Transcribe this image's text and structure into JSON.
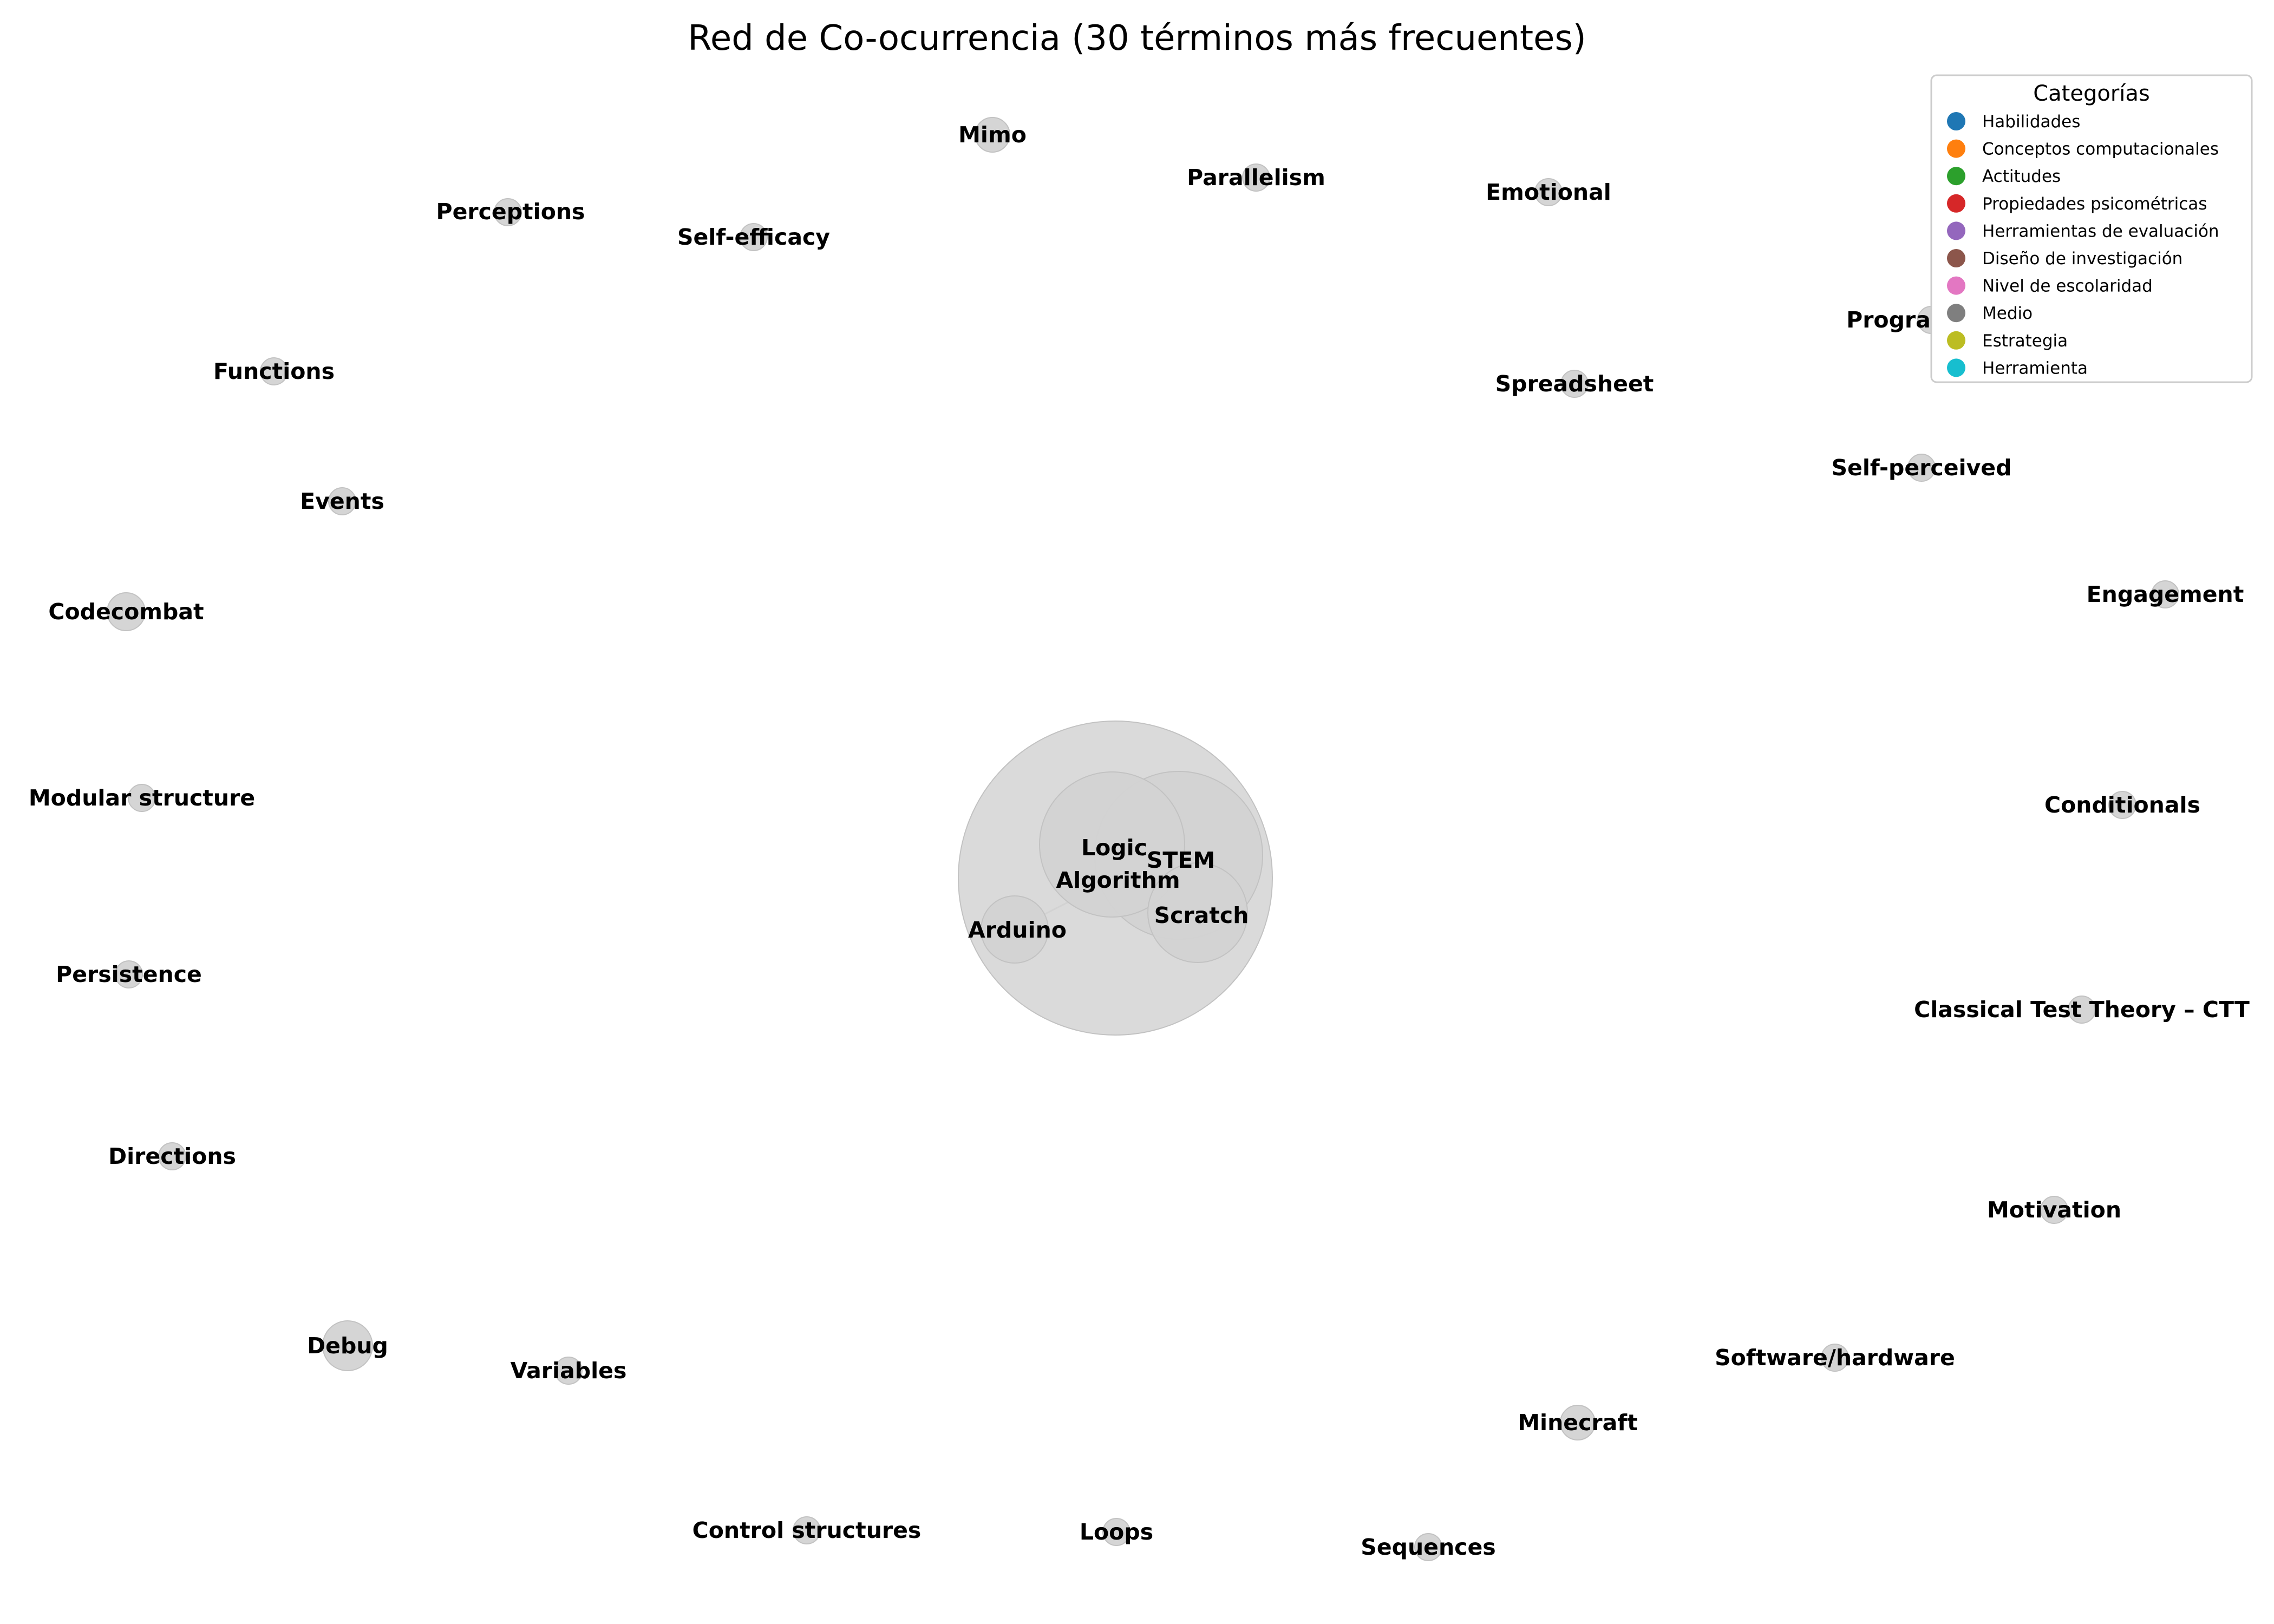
{
  "title": "Red de Co-ocurrencia (30 términos más frecuentes)",
  "legend": {
    "title": "Categorías",
    "placement": "top-right",
    "items": [
      {
        "label": "Habilidades",
        "color": "#1f77b4"
      },
      {
        "label": "Conceptos computacionales",
        "color": "#ff7f0e"
      },
      {
        "label": "Actitudes",
        "color": "#2ca02c"
      },
      {
        "label": "Propiedades psicométricas",
        "color": "#d62728"
      },
      {
        "label": "Herramientas de evaluación",
        "color": "#9467bd"
      },
      {
        "label": "Diseño de investigación",
        "color": "#8c564b"
      },
      {
        "label": "Nivel de escolaridad",
        "color": "#e377c2"
      },
      {
        "label": "Medio",
        "color": "#7f7f7f"
      },
      {
        "label": "Estrategia",
        "color": "#bcbd22"
      },
      {
        "label": "Herramienta",
        "color": "#17becf"
      }
    ]
  },
  "node_color": "#d3d3d3",
  "nodes": [
    {
      "label": "Algorithm"
    },
    {
      "label": "Logic"
    },
    {
      "label": "STEM"
    },
    {
      "label": "Scratch"
    },
    {
      "label": "Arduino"
    },
    {
      "label": "Mimo"
    },
    {
      "label": "Parallelism"
    },
    {
      "label": "Emotional"
    },
    {
      "label": "Perceptions"
    },
    {
      "label": "Self-efficacy"
    },
    {
      "label": "Programming"
    },
    {
      "label": "Functions"
    },
    {
      "label": "Spreadsheet"
    },
    {
      "label": "Self-perceived"
    },
    {
      "label": "Events"
    },
    {
      "label": "Engagement"
    },
    {
      "label": "Codecombat"
    },
    {
      "label": "Modular structure"
    },
    {
      "label": "Conditionals"
    },
    {
      "label": "Persistence"
    },
    {
      "label": "Classical Test Theory – CTT"
    },
    {
      "label": "Directions"
    },
    {
      "label": "Motivation"
    },
    {
      "label": "Debug"
    },
    {
      "label": "Variables"
    },
    {
      "label": "Software/hardware"
    },
    {
      "label": "Minecraft"
    },
    {
      "label": "Control structures"
    },
    {
      "label": "Loops"
    },
    {
      "label": "Sequences"
    }
  ],
  "edges": [
    [
      "Algorithm",
      "Logic"
    ],
    [
      "Algorithm",
      "STEM"
    ],
    [
      "Algorithm",
      "Scratch"
    ],
    [
      "Algorithm",
      "Arduino"
    ],
    [
      "Logic",
      "STEM"
    ],
    [
      "STEM",
      "Scratch"
    ]
  ]
}
